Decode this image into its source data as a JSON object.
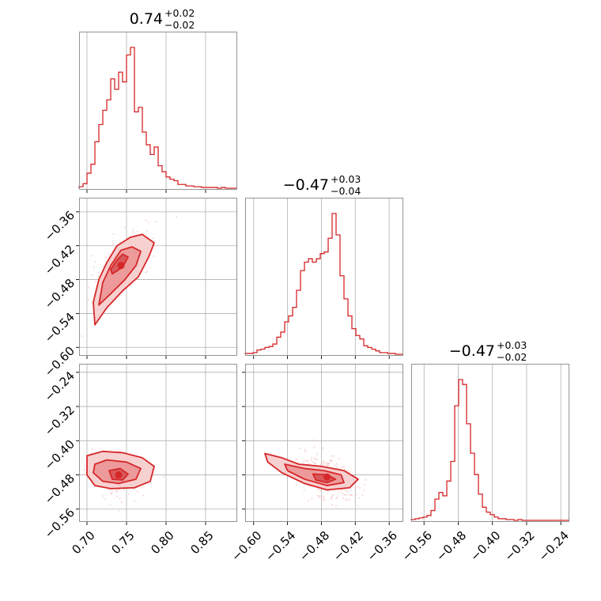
{
  "figure": {
    "accent_color": "#d62728",
    "grid_color": "#b0b0b0"
  },
  "chart_data": [
    {
      "type": "histogram",
      "panel": "marginal-1",
      "title": {
        "value": "0.74",
        "plus": "+0.02",
        "minus": "−0.02"
      },
      "xlim": [
        0.69,
        0.89
      ],
      "bins_start": 0.69,
      "bins_end": 0.89,
      "counts": [
        2,
        6,
        20,
        32,
        62,
        85,
        104,
        118,
        146,
        132,
        155,
        142,
        178,
        188,
        102,
        108,
        75,
        58,
        45,
        55,
        30,
        22,
        15,
        12,
        10,
        5,
        5,
        3,
        3,
        2,
        2,
        1,
        1,
        1,
        1,
        0,
        1,
        0,
        0,
        0
      ]
    },
    {
      "type": "histogram",
      "panel": "marginal-2",
      "title": {
        "value": "−0.47",
        "plus": "+0.03",
        "minus": "−0.04"
      },
      "xlim": [
        -0.615,
        -0.335
      ],
      "bins_start": -0.615,
      "bins_end": -0.335,
      "counts": [
        1,
        1,
        2,
        5,
        6,
        8,
        9,
        12,
        20,
        26,
        38,
        45,
        55,
        75,
        98,
        108,
        112,
        108,
        112,
        118,
        120,
        136,
        165,
        140,
        92,
        65,
        45,
        30,
        22,
        18,
        10,
        8,
        6,
        4,
        2,
        2,
        1,
        1,
        0,
        0
      ]
    },
    {
      "type": "histogram",
      "panel": "marginal-3",
      "title": {
        "value": "−0.47",
        "plus": "+0.03",
        "minus": "−0.02"
      },
      "xlim": [
        -0.59,
        -0.22
      ],
      "bins_start": -0.59,
      "bins_end": -0.22,
      "counts": [
        1,
        2,
        3,
        4,
        6,
        12,
        26,
        34,
        30,
        48,
        72,
        140,
        172,
        166,
        118,
        82,
        56,
        32,
        16,
        10,
        7,
        4,
        2,
        2,
        1,
        1,
        0,
        1,
        0,
        0,
        0,
        0,
        0,
        0,
        0,
        0,
        0,
        0,
        0,
        0
      ]
    },
    {
      "type": "contour",
      "panel": "joint-2-1",
      "xlim": [
        0.69,
        0.89
      ],
      "ylim": [
        -0.615,
        -0.335
      ],
      "peak": [
        0.743,
        -0.455
      ],
      "regions": [
        [
          [
            0.71,
            -0.56
          ],
          [
            0.725,
            -0.53
          ],
          [
            0.745,
            -0.5
          ],
          [
            0.765,
            -0.475
          ],
          [
            0.778,
            -0.44
          ],
          [
            0.785,
            -0.415
          ],
          [
            0.77,
            -0.4
          ],
          [
            0.755,
            -0.405
          ],
          [
            0.738,
            -0.42
          ],
          [
            0.725,
            -0.45
          ],
          [
            0.715,
            -0.48
          ],
          [
            0.708,
            -0.52
          ]
        ],
        [
          [
            0.715,
            -0.525
          ],
          [
            0.73,
            -0.505
          ],
          [
            0.748,
            -0.48
          ],
          [
            0.762,
            -0.455
          ],
          [
            0.768,
            -0.43
          ],
          [
            0.757,
            -0.422
          ],
          [
            0.743,
            -0.428
          ],
          [
            0.73,
            -0.455
          ],
          [
            0.72,
            -0.485
          ]
        ],
        [
          [
            0.732,
            -0.47
          ],
          [
            0.745,
            -0.458
          ],
          [
            0.752,
            -0.44
          ],
          [
            0.745,
            -0.435
          ],
          [
            0.737,
            -0.447
          ],
          [
            0.73,
            -0.462
          ]
        ]
      ]
    },
    {
      "type": "contour",
      "panel": "joint-3-1",
      "xlim": [
        0.69,
        0.89
      ],
      "ylim": [
        -0.59,
        -0.22
      ],
      "peak": [
        0.74,
        -0.48
      ],
      "regions": [
        [
          [
            0.7,
            -0.435
          ],
          [
            0.72,
            -0.425
          ],
          [
            0.745,
            -0.428
          ],
          [
            0.77,
            -0.44
          ],
          [
            0.785,
            -0.46
          ],
          [
            0.78,
            -0.495
          ],
          [
            0.76,
            -0.51
          ],
          [
            0.73,
            -0.512
          ],
          [
            0.71,
            -0.505
          ],
          [
            0.7,
            -0.48
          ]
        ],
        [
          [
            0.71,
            -0.455
          ],
          [
            0.725,
            -0.445
          ],
          [
            0.75,
            -0.45
          ],
          [
            0.768,
            -0.465
          ],
          [
            0.762,
            -0.49
          ],
          [
            0.74,
            -0.5
          ],
          [
            0.72,
            -0.495
          ],
          [
            0.708,
            -0.475
          ]
        ],
        [
          [
            0.728,
            -0.47
          ],
          [
            0.742,
            -0.465
          ],
          [
            0.752,
            -0.478
          ],
          [
            0.745,
            -0.492
          ],
          [
            0.732,
            -0.49
          ]
        ]
      ]
    },
    {
      "type": "contour",
      "panel": "joint-3-2",
      "xlim": [
        -0.615,
        -0.335
      ],
      "ylim": [
        -0.59,
        -0.22
      ],
      "peak": [
        -0.47,
        -0.485
      ],
      "regions": [
        [
          [
            -0.58,
            -0.43
          ],
          [
            -0.55,
            -0.44
          ],
          [
            -0.52,
            -0.455
          ],
          [
            -0.48,
            -0.46
          ],
          [
            -0.44,
            -0.47
          ],
          [
            -0.415,
            -0.49
          ],
          [
            -0.43,
            -0.51
          ],
          [
            -0.47,
            -0.515
          ],
          [
            -0.51,
            -0.5
          ],
          [
            -0.55,
            -0.475
          ],
          [
            -0.575,
            -0.45
          ]
        ],
        [
          [
            -0.545,
            -0.455
          ],
          [
            -0.51,
            -0.465
          ],
          [
            -0.475,
            -0.47
          ],
          [
            -0.445,
            -0.48
          ],
          [
            -0.44,
            -0.498
          ],
          [
            -0.47,
            -0.505
          ],
          [
            -0.51,
            -0.49
          ],
          [
            -0.54,
            -0.47
          ]
        ],
        [
          [
            -0.495,
            -0.478
          ],
          [
            -0.47,
            -0.48
          ],
          [
            -0.455,
            -0.49
          ],
          [
            -0.47,
            -0.498
          ],
          [
            -0.49,
            -0.492
          ]
        ]
      ]
    }
  ],
  "axes": {
    "x1_ticks": [
      "0.70",
      "0.75",
      "0.80",
      "0.85"
    ],
    "x1_values": [
      0.7,
      0.75,
      0.8,
      0.85
    ],
    "x2_ticks": [
      "−0.60",
      "−0.54",
      "−0.48",
      "−0.42",
      "−0.36"
    ],
    "x2_values": [
      -0.6,
      -0.54,
      -0.48,
      -0.42,
      -0.36
    ],
    "x3_ticks": [
      "−0.56",
      "−0.48",
      "−0.40",
      "−0.32",
      "−0.24"
    ],
    "x3_values": [
      -0.56,
      -0.48,
      -0.4,
      -0.32,
      -0.24
    ],
    "y2_ticks": [
      "−0.36",
      "−0.42",
      "−0.48",
      "−0.54",
      "−0.60"
    ],
    "y2_values": [
      -0.36,
      -0.42,
      -0.48,
      -0.54,
      -0.6
    ],
    "y3_ticks": [
      "−0.24",
      "−0.32",
      "−0.40",
      "−0.48",
      "−0.56"
    ],
    "y3_values": [
      -0.24,
      -0.32,
      -0.4,
      -0.48,
      -0.56
    ]
  }
}
